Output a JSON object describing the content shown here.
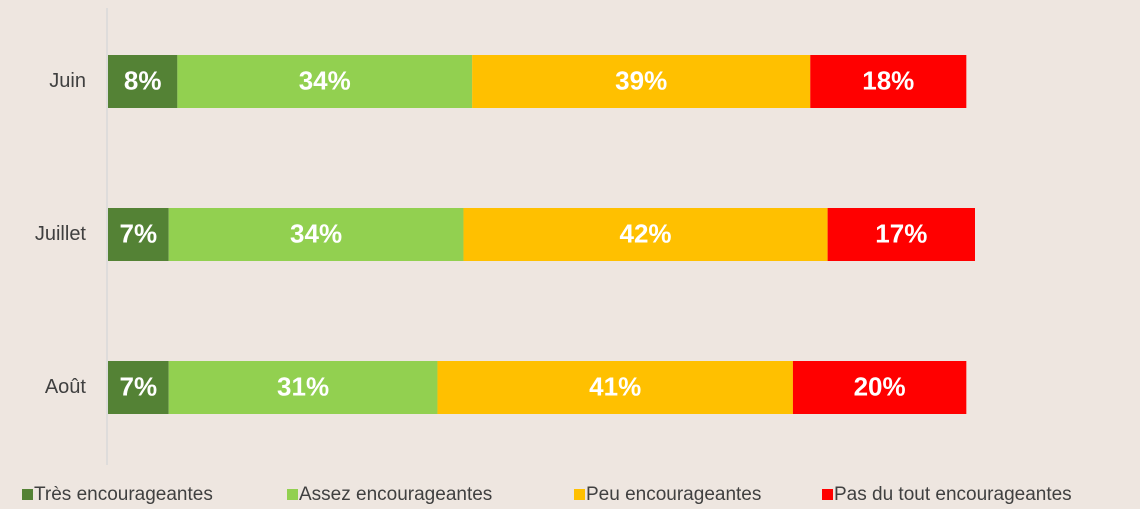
{
  "chart_data": {
    "type": "stacked-bar-horizontal",
    "categories": [
      "Juin",
      "Juillet",
      "Août"
    ],
    "xlim": [
      0,
      100
    ],
    "series": [
      {
        "name": "Très encourageantes",
        "color": "#548235",
        "values": [
          8,
          7,
          7
        ],
        "value_labels": [
          "8%",
          "7%",
          "7%"
        ]
      },
      {
        "name": "Assez encourageantes",
        "color": "#92d050",
        "values": [
          34,
          34,
          31
        ],
        "value_labels": [
          "34%",
          "34%",
          "31%"
        ]
      },
      {
        "name": "Peu encourageantes",
        "color": "#ffc000",
        "values": [
          39,
          42,
          41
        ],
        "value_labels": [
          "39%",
          "42%",
          "41%"
        ]
      },
      {
        "name": "Pas du tout encourageantes",
        "color": "#ff0000",
        "values": [
          18,
          17,
          20
        ],
        "value_labels": [
          "18%",
          "17%",
          "20%"
        ]
      }
    ],
    "legend": "bottom"
  }
}
